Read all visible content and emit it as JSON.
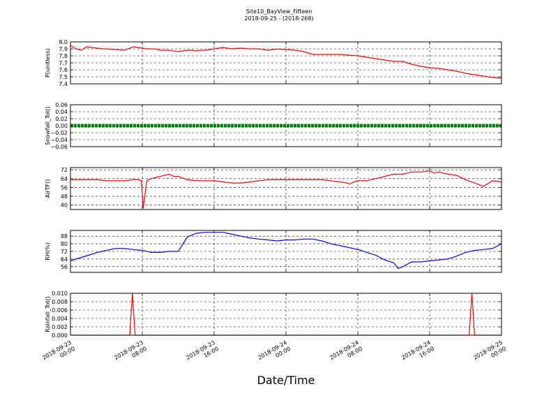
{
  "figure": {
    "title_line1": "Site10_BayView_Fifteen",
    "title_line2": "2018-09-25 - (2018-268)",
    "xlabel": "Date/Time"
  },
  "colors": {
    "red": "#ff0000",
    "blue": "#0000ff",
    "green": "#008000",
    "grid": "#000000"
  },
  "chart_data": [
    {
      "type": "line",
      "id": "p",
      "ylabel": "P(unitless)",
      "ylim": [
        7.4,
        8.0
      ],
      "yticks": [
        7.4,
        7.5,
        7.6,
        7.7,
        7.8,
        7.9,
        8.0
      ],
      "ytick_labels": [
        "7.4",
        "7.5",
        "7.6",
        "7.7",
        "7.8",
        "7.9",
        "8.0"
      ],
      "xlim": [
        "2018-09-23 00:00",
        "2018-09-25 00:00"
      ],
      "grid": true,
      "series": [
        {
          "color": "#ff0000",
          "x_hours": [
            0,
            0.6,
            1.2,
            1.8,
            2.4,
            3,
            3.6,
            4,
            5,
            6,
            7,
            8,
            8.5,
            9,
            9.5,
            10,
            11,
            12,
            13,
            13.5,
            14,
            14.5,
            15,
            16,
            17,
            18,
            19,
            20,
            21,
            22,
            23,
            24,
            25,
            26,
            27,
            28,
            29,
            30,
            31,
            32,
            33,
            34,
            35,
            36,
            37,
            38,
            39,
            40,
            41,
            42,
            43,
            44,
            45,
            46,
            47,
            48
          ],
          "values": [
            7.95,
            7.9,
            7.88,
            7.93,
            7.92,
            7.91,
            7.9,
            7.9,
            7.89,
            7.88,
            7.93,
            7.91,
            7.9,
            7.9,
            7.9,
            7.88,
            7.88,
            7.86,
            7.88,
            7.88,
            7.87,
            7.88,
            7.88,
            7.9,
            7.92,
            7.9,
            7.91,
            7.9,
            7.9,
            7.88,
            7.9,
            7.89,
            7.88,
            7.86,
            7.82,
            7.82,
            7.82,
            7.82,
            7.81,
            7.8,
            7.78,
            7.76,
            7.74,
            7.72,
            7.72,
            7.68,
            7.65,
            7.63,
            7.62,
            7.6,
            7.58,
            7.55,
            7.53,
            7.51,
            7.49,
            7.48
          ]
        }
      ]
    },
    {
      "type": "line",
      "id": "snow",
      "ylabel": "Snowfall_Tot()",
      "ylim": [
        -0.06,
        0.06
      ],
      "yticks": [
        -0.06,
        -0.04,
        -0.02,
        0.0,
        0.02,
        0.04,
        0.06
      ],
      "ytick_labels": [
        "−0.06",
        "−0.04",
        "−0.02",
        "0.00",
        "0.02",
        "0.04",
        "0.06"
      ],
      "xlim": [
        "2018-09-23 00:00",
        "2018-09-25 00:00"
      ],
      "grid": true,
      "series": [
        {
          "color": "#008000",
          "x_hours": [
            0,
            48
          ],
          "values": [
            0,
            0
          ]
        }
      ]
    },
    {
      "type": "line",
      "id": "air",
      "ylabel": "AirTF()",
      "ylim": [
        36,
        74
      ],
      "yticks": [
        40,
        48,
        56,
        64,
        72
      ],
      "ytick_labels": [
        "40",
        "48",
        "56",
        "64",
        "72"
      ],
      "xlim": [
        "2018-09-23 00:00",
        "2018-09-25 00:00"
      ],
      "grid": true,
      "series": [
        {
          "color": "#ff0000",
          "x_hours": [
            0,
            1,
            2,
            3,
            4,
            5,
            6,
            7,
            7.6,
            7.9,
            8.1,
            8.5,
            9,
            10,
            11,
            11.5,
            12,
            13,
            14,
            15,
            16,
            17,
            18,
            19,
            20,
            21,
            22,
            23,
            24,
            25,
            26,
            27,
            28,
            29,
            30,
            30.8,
            31.1,
            31.3,
            31.6,
            32,
            33,
            34,
            35,
            36,
            37,
            38,
            39,
            40,
            40.5,
            41,
            42,
            43,
            44,
            45,
            46,
            47,
            48
          ],
          "values": [
            63,
            63,
            63,
            63,
            62,
            62,
            62,
            63,
            63,
            62,
            37,
            62,
            64,
            66,
            68,
            66,
            66,
            63,
            62,
            62,
            62,
            61,
            60,
            60,
            61,
            62,
            63,
            63,
            63,
            63,
            63,
            63,
            63,
            62,
            61,
            60,
            59,
            60,
            61,
            62,
            62,
            64,
            66,
            68,
            68,
            70,
            70,
            71,
            69,
            70,
            68,
            67,
            63,
            60,
            57,
            62,
            61
          ]
        }
      ]
    },
    {
      "type": "line",
      "id": "rh",
      "ylabel": "RH(%)",
      "ylim": [
        50,
        94
      ],
      "yticks": [
        56,
        64,
        72,
        80,
        88
      ],
      "ytick_labels": [
        "56",
        "64",
        "72",
        "80",
        "88"
      ],
      "xlim": [
        "2018-09-23 00:00",
        "2018-09-25 00:00"
      ],
      "grid": true,
      "series": [
        {
          "color": "#0000ff",
          "x_hours": [
            0,
            1,
            2,
            3,
            4,
            5,
            6,
            7,
            8,
            9,
            10,
            11,
            12,
            13,
            14,
            15,
            16,
            17,
            18,
            19,
            20,
            21,
            22,
            23,
            24,
            25,
            26,
            27,
            28,
            29,
            30,
            31,
            32,
            33,
            34,
            35,
            36,
            36.5,
            37,
            38,
            39,
            40,
            41,
            42,
            43,
            44,
            45,
            46,
            47,
            48
          ],
          "values": [
            62,
            65,
            68,
            71,
            73,
            75,
            75,
            74,
            73,
            71,
            71,
            72,
            72,
            87,
            91,
            92,
            92,
            92,
            90,
            88,
            86,
            85,
            84,
            83,
            84,
            84,
            85,
            85,
            83,
            80,
            78,
            76,
            74,
            71,
            68,
            63,
            60,
            54,
            56,
            61,
            61,
            62,
            63,
            64,
            67,
            71,
            73,
            74,
            75,
            80
          ]
        }
      ]
    },
    {
      "type": "line",
      "id": "rain",
      "ylabel": "Rainfall_Tot()",
      "ylim": [
        0.0,
        0.01
      ],
      "yticks": [
        0.0,
        0.002,
        0.004,
        0.006,
        0.008,
        0.01
      ],
      "ytick_labels": [
        "0.000",
        "0.002",
        "0.004",
        "0.006",
        "0.008",
        "0.010"
      ],
      "xlim": [
        "2018-09-23 00:00",
        "2018-09-25 00:00"
      ],
      "grid": true,
      "series": [
        {
          "color": "#ff0000",
          "x_hours": [
            0,
            6.6,
            6.9,
            7.2,
            44.4,
            44.7,
            45.0,
            48
          ],
          "values": [
            0,
            0,
            0.01,
            0,
            0,
            0.01,
            0,
            0
          ]
        }
      ]
    }
  ],
  "xticks": {
    "labels": [
      "2018-09-23\n00:00",
      "2018-09-23\n08:00",
      "2018-09-23\n16:00",
      "2018-09-24\n00:00",
      "2018-09-24\n08:00",
      "2018-09-24\n16:00",
      "2018-09-25\n00:00"
    ]
  }
}
